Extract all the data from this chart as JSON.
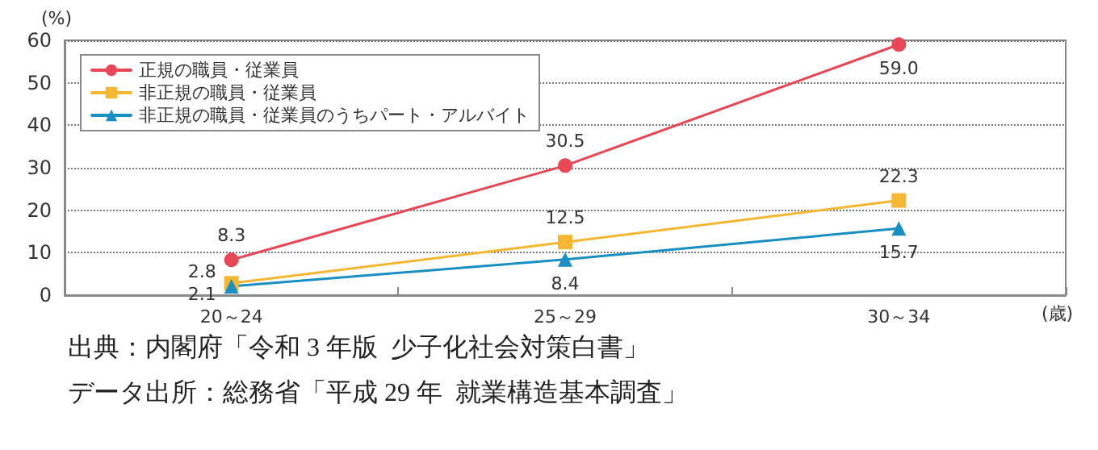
{
  "chart_data": {
    "type": "line",
    "categories": [
      "20～24",
      "25～29",
      "30～34"
    ],
    "series": [
      {
        "name": "正規の職員・従業員",
        "color": "#e84855",
        "marker": "circle",
        "values": [
          8.3,
          30.5,
          59.0
        ],
        "value_labels": [
          "8.3",
          "30.5",
          "59.0"
        ]
      },
      {
        "name": "非正規の職員・従業員",
        "color": "#f5b731",
        "marker": "square",
        "values": [
          2.8,
          12.5,
          22.3
        ],
        "value_labels": [
          "2.8",
          "12.5",
          "22.3"
        ]
      },
      {
        "name": "非正規の職員・従業員のうちパート・アルバイト",
        "color": "#1a8fc4",
        "marker": "triangle",
        "values": [
          2.1,
          8.4,
          15.7
        ],
        "value_labels": [
          "2.1",
          "8.4",
          "15.7"
        ]
      }
    ],
    "ylabel": "(%)",
    "xlabel": "(歳)",
    "ylim": [
      0,
      60
    ],
    "yticks": [
      0,
      10,
      20,
      30,
      40,
      50,
      60
    ],
    "grid": "y",
    "legend": "top left",
    "annotations": [
      "出典：内閣府「令和 3 年版  少子化社会対策白書」",
      "データ出所：総務省「平成 29 年  就業構造基本調査」"
    ]
  }
}
